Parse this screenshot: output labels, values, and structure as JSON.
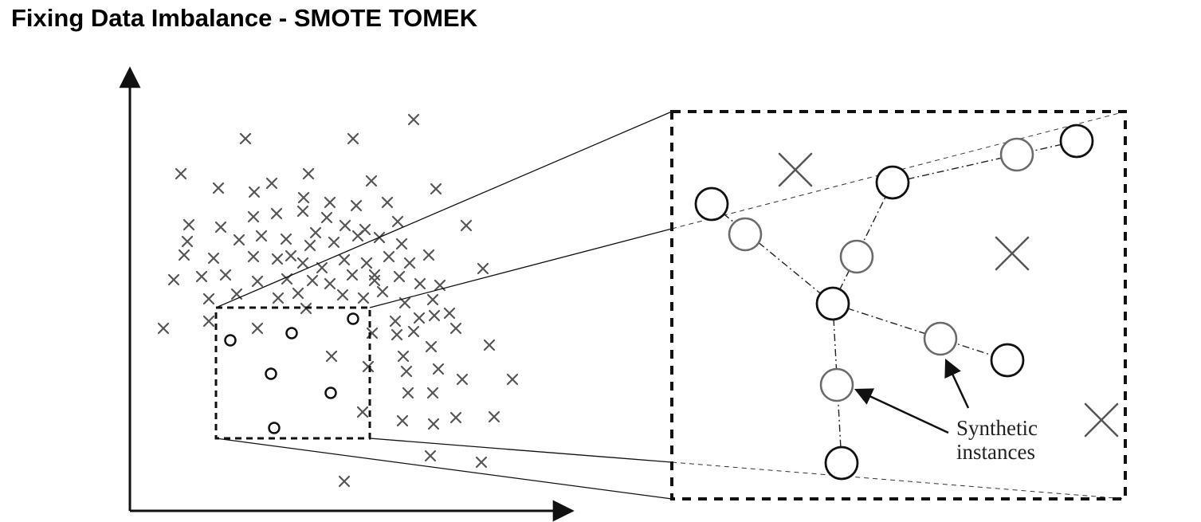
{
  "page": {
    "title": "Fixing Data Imbalance - SMOTE TOMEK"
  },
  "diagram": {
    "annotation": {
      "line1": "Synthetic",
      "line2": "instances"
    },
    "colors": {
      "majority_marker": "#555555",
      "minority_marker": "#111111",
      "synthetic_marker": "#6b6b6b",
      "lines": "#111111"
    },
    "icons": {
      "majority": "cross-icon",
      "minority": "circle-icon",
      "synthetic": "circle-icon"
    }
  }
}
